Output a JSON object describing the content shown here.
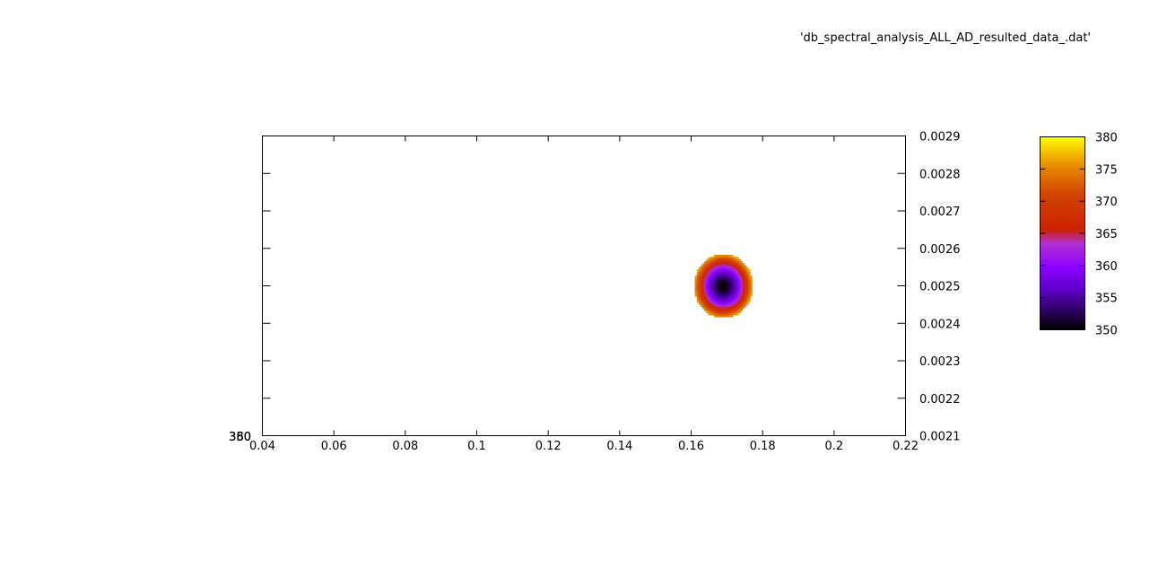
{
  "chart_data": {
    "type": "heatmap",
    "title": "'db_spectral_analysis_ALL_AD_resulted_data_.dat'",
    "xlabel": "",
    "ylabel": "",
    "xlim": [
      0.04,
      0.22
    ],
    "ylim": [
      0.0021,
      0.0029
    ],
    "x_ticks": [
      "0.04",
      "0.06",
      "0.08",
      "0.1",
      "0.12",
      "0.14",
      "0.16",
      "0.18",
      "0.2",
      "0.22"
    ],
    "y_ticks": [
      "0.0021",
      "0.0022",
      "0.0023",
      "0.0024",
      "0.0025",
      "0.0026",
      "0.0027",
      "0.0028",
      "0.0029"
    ],
    "left_axis_labels": [
      "380",
      "350",
      "360"
    ],
    "colorbar": {
      "range": [
        350,
        380
      ],
      "ticks": [
        "350",
        "355",
        "360",
        "365",
        "370",
        "375",
        "380"
      ],
      "palette": [
        "#000000",
        "#7a00ff",
        "#c030d0",
        "#cc2200",
        "#e07000",
        "#ffff00"
      ]
    },
    "surface": {
      "center_x": 0.169,
      "center_y": 0.0025,
      "radius_x": 0.0082,
      "radius_y": 8.5e-05,
      "min_value": 350,
      "edge_value": 377
    },
    "grid": false,
    "legend": "none"
  }
}
